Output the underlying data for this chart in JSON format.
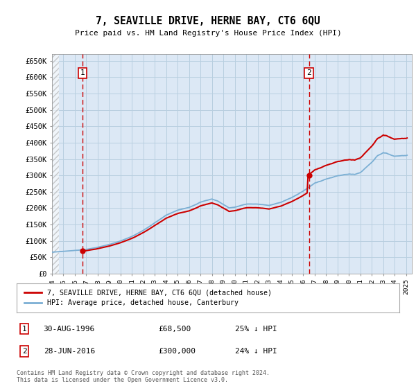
{
  "title": "7, SEAVILLE DRIVE, HERNE BAY, CT6 6QU",
  "subtitle": "Price paid vs. HM Land Registry's House Price Index (HPI)",
  "ylim": [
    0,
    670000
  ],
  "yticks": [
    0,
    50000,
    100000,
    150000,
    200000,
    250000,
    300000,
    350000,
    400000,
    450000,
    500000,
    550000,
    600000,
    650000
  ],
  "ytick_labels": [
    "£0",
    "£50K",
    "£100K",
    "£150K",
    "£200K",
    "£250K",
    "£300K",
    "£350K",
    "£400K",
    "£450K",
    "£500K",
    "£550K",
    "£600K",
    "£650K"
  ],
  "purchase1_year": 1996.66,
  "purchase1_price": 68500,
  "purchase2_year": 2016.49,
  "purchase2_price": 300000,
  "hpi_color": "#7bafd4",
  "price_color": "#cc0000",
  "bg_color": "#dce8f5",
  "grid_color": "#b8cfe0",
  "legend1": "7, SEAVILLE DRIVE, HERNE BAY, CT6 6QU (detached house)",
  "legend2": "HPI: Average price, detached house, Canterbury",
  "ann1_date": "30-AUG-1996",
  "ann1_price": "£68,500",
  "ann1_hpi": "25% ↓ HPI",
  "ann2_date": "28-JUN-2016",
  "ann2_price": "£300,000",
  "ann2_hpi": "24% ↓ HPI",
  "footer": "Contains HM Land Registry data © Crown copyright and database right 2024.\nThis data is licensed under the Open Government Licence v3.0.",
  "xmin": 1994,
  "xmax": 2025.5
}
